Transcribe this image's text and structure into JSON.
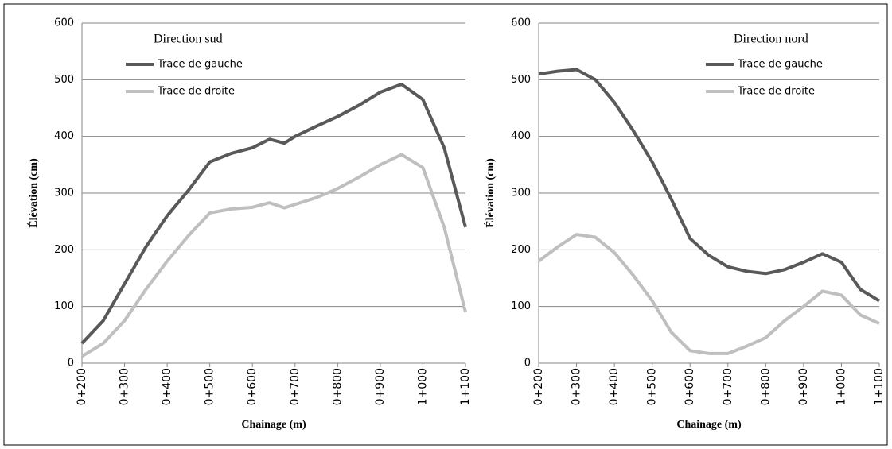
{
  "chart_data": [
    {
      "type": "line",
      "legend_title": "Direction sud",
      "xlabel": "Chainage (m)",
      "ylabel": "Élévation  (cm)",
      "x": [
        200,
        250,
        300,
        350,
        400,
        450,
        500,
        550,
        600,
        640,
        675,
        700,
        750,
        800,
        850,
        900,
        950,
        1000,
        1050,
        1100
      ],
      "series": [
        {
          "name": "Trace de gauche",
          "color": "#595959",
          "values": [
            35,
            75,
            140,
            205,
            260,
            305,
            355,
            370,
            380,
            395,
            388,
            400,
            418,
            435,
            455,
            478,
            492,
            465,
            380,
            240
          ]
        },
        {
          "name": "Trace de droite",
          "color": "#bfbfbf",
          "values": [
            12,
            35,
            75,
            130,
            180,
            225,
            265,
            272,
            275,
            283,
            274,
            280,
            292,
            308,
            328,
            350,
            368,
            345,
            240,
            90
          ]
        }
      ],
      "xlim": [
        200,
        1100
      ],
      "xticks": [
        {
          "value": 200,
          "label": "0+200"
        },
        {
          "value": 300,
          "label": "0+300"
        },
        {
          "value": 400,
          "label": "0+400"
        },
        {
          "value": 500,
          "label": "0+500"
        },
        {
          "value": 600,
          "label": "0+600"
        },
        {
          "value": 700,
          "label": "0+700"
        },
        {
          "value": 800,
          "label": "0+800"
        },
        {
          "value": 900,
          "label": "0+900"
        },
        {
          "value": 1000,
          "label": "1+000"
        },
        {
          "value": 1100,
          "label": "1+100"
        }
      ],
      "ylim": [
        0,
        600
      ],
      "yticks": [
        0,
        100,
        200,
        300,
        400,
        500,
        600
      ],
      "grid": true,
      "legend": "upper left"
    },
    {
      "type": "line",
      "legend_title": "Direction nord",
      "xlabel": "Chainage (m)",
      "ylabel": "Élévation  (cm)",
      "x": [
        200,
        250,
        300,
        350,
        400,
        450,
        500,
        550,
        600,
        650,
        700,
        750,
        800,
        850,
        900,
        950,
        1000,
        1050,
        1100
      ],
      "series": [
        {
          "name": "Trace de gauche",
          "color": "#595959",
          "values": [
            510,
            515,
            518,
            500,
            460,
            410,
            355,
            290,
            220,
            190,
            170,
            162,
            158,
            165,
            178,
            193,
            178,
            130,
            110
          ]
        },
        {
          "name": "Trace de droite",
          "color": "#bfbfbf",
          "values": [
            180,
            205,
            227,
            222,
            195,
            155,
            110,
            55,
            22,
            17,
            17,
            30,
            45,
            75,
            100,
            127,
            120,
            85,
            70
          ]
        }
      ],
      "xlim": [
        200,
        1100
      ],
      "xticks": [
        {
          "value": 200,
          "label": "0+200"
        },
        {
          "value": 300,
          "label": "0+300"
        },
        {
          "value": 400,
          "label": "0+400"
        },
        {
          "value": 500,
          "label": "0+500"
        },
        {
          "value": 600,
          "label": "0+600"
        },
        {
          "value": 700,
          "label": "0+700"
        },
        {
          "value": 800,
          "label": "0+800"
        },
        {
          "value": 900,
          "label": "0+900"
        },
        {
          "value": 1000,
          "label": "1+000"
        },
        {
          "value": 1100,
          "label": "1+100"
        }
      ],
      "ylim": [
        0,
        600
      ],
      "yticks": [
        0,
        100,
        200,
        300,
        400,
        500,
        600
      ],
      "grid": true,
      "legend": "upper right"
    }
  ]
}
